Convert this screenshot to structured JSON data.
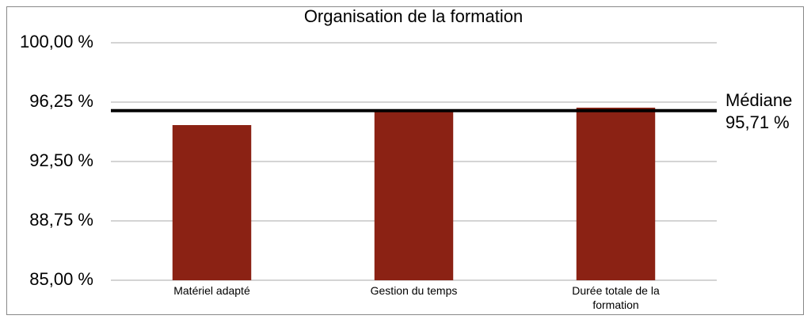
{
  "chart_data": {
    "type": "bar",
    "title": "Organisation de la formation",
    "categories": [
      "Matériel adapté",
      "Gestion du temps",
      "Durée totale de la formation"
    ],
    "values": [
      94.8,
      95.7,
      95.9
    ],
    "color": "#8b2214",
    "ylim": [
      85,
      100
    ],
    "yticks": [
      {
        "value": 85,
        "label": "85,00 %"
      },
      {
        "value": 88.75,
        "label": "88,75 %"
      },
      {
        "value": 92.5,
        "label": "92,50 %"
      },
      {
        "value": 96.25,
        "label": "96,25 %"
      },
      {
        "value": 100,
        "label": "100,00 %"
      }
    ],
    "grid": true,
    "reference_line": {
      "name": "Médiane",
      "value": 95.71,
      "value_label": "95,71 %",
      "color": "#000000"
    }
  }
}
